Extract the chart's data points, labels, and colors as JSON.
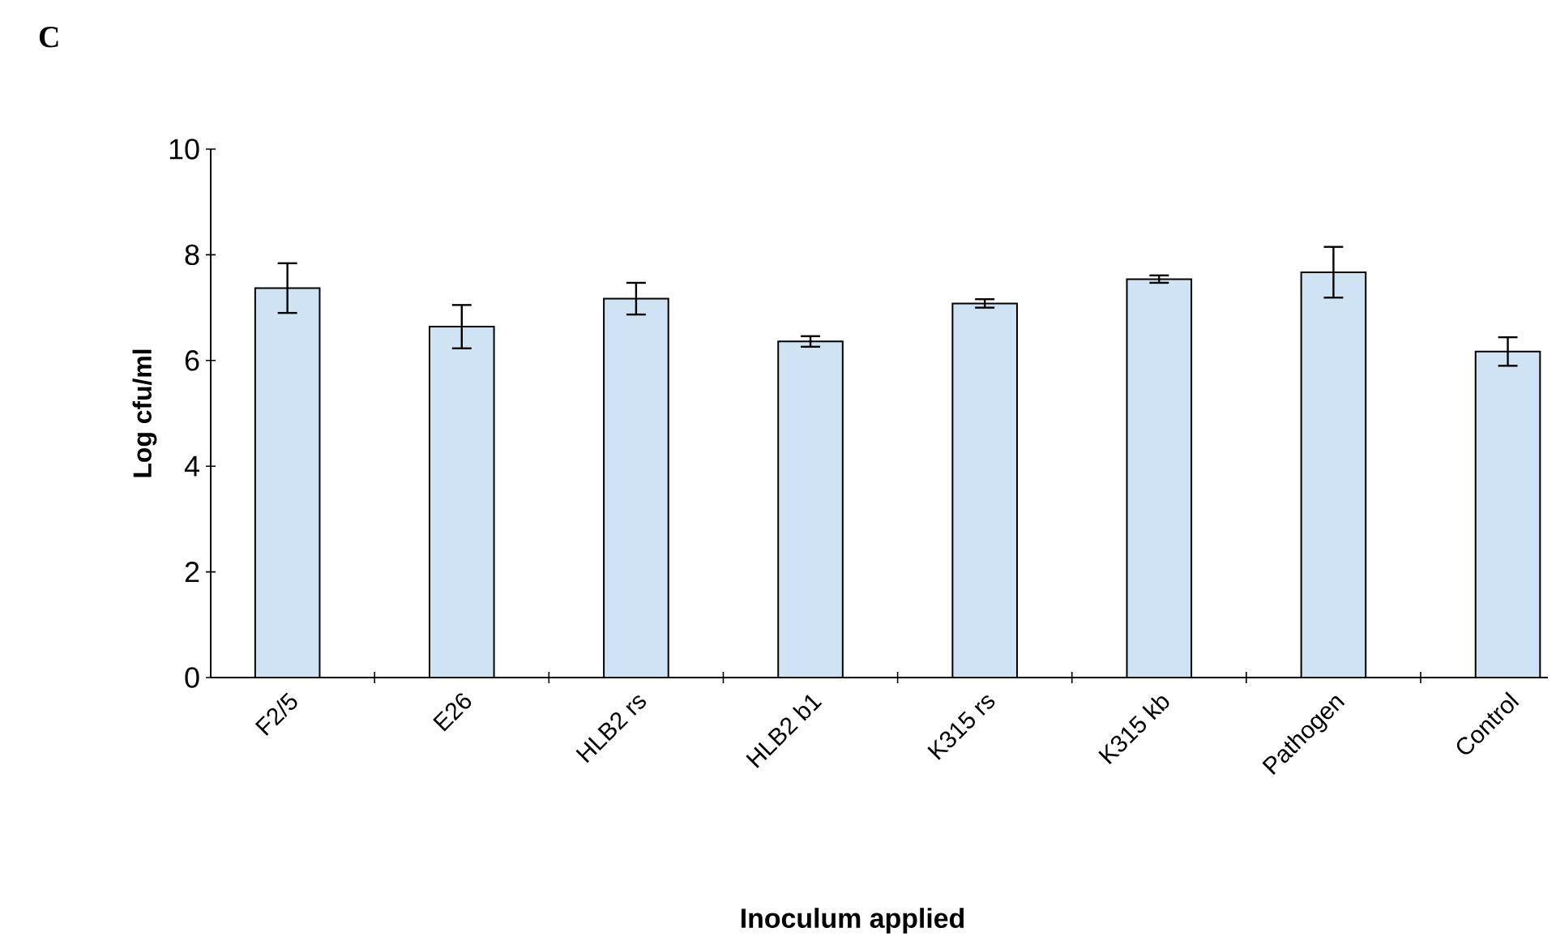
{
  "chart_data": {
    "type": "bar",
    "title": "C",
    "xlabel": "Inoculum applied",
    "ylabel": "Log cfu/ml",
    "categories": [
      "F2/5",
      "E26",
      "HLB2 rs",
      "HLB2 b1",
      "K315 rs",
      "K315 kb",
      "Pathogen",
      "Control"
    ],
    "values": [
      7.37,
      6.64,
      7.17,
      6.36,
      7.08,
      7.54,
      7.67,
      6.17
    ],
    "errors": [
      0.47,
      0.41,
      0.3,
      0.1,
      0.08,
      0.07,
      0.48,
      0.27
    ],
    "color": "#cfe3f5",
    "ylim": [
      0,
      10
    ],
    "yticks": [
      0,
      2,
      4,
      6,
      8,
      10
    ],
    "grid": false
  }
}
